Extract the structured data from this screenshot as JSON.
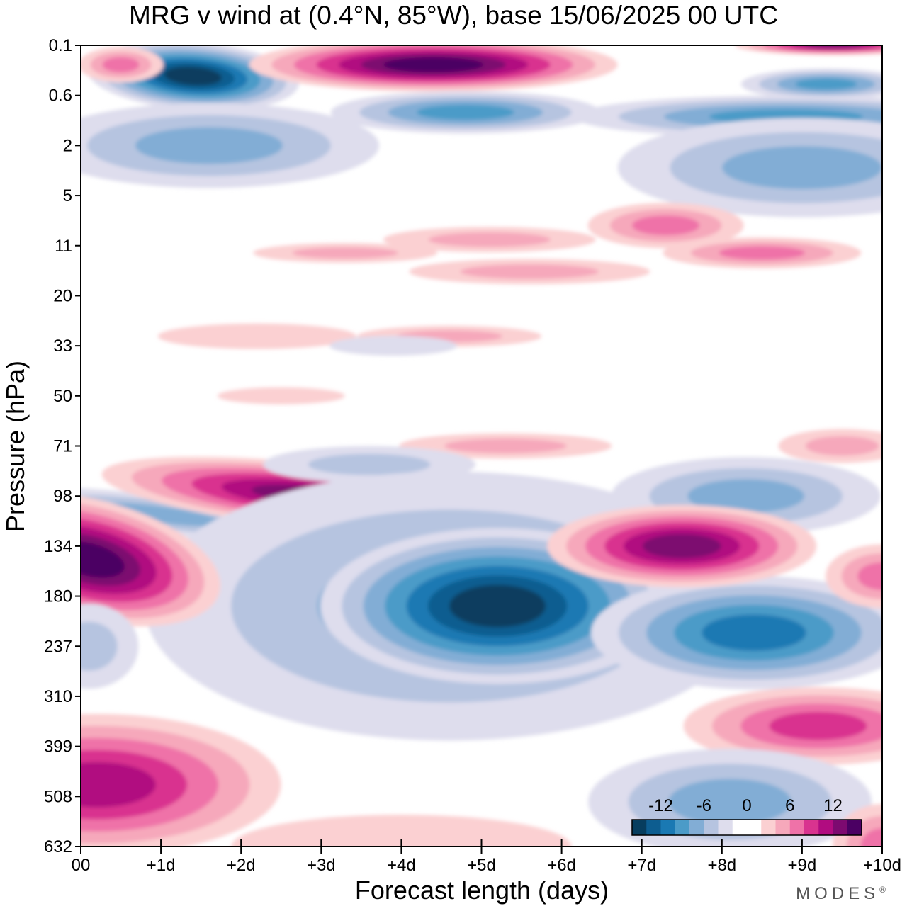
{
  "chart_data": {
    "type": "heatmap",
    "title": "MRG v wind at (0.4°N, 85°W),  base 15/06/2025  00 UTC",
    "xlabel": "Forecast length (days)",
    "ylabel": "Pressure (hPa)",
    "x_ticks": [
      "00",
      "+1d",
      "+2d",
      "+3d",
      "+4d",
      "+5d",
      "+6d",
      "+7d",
      "+8d",
      "+9d",
      "+10d"
    ],
    "xlim": [
      0,
      10
    ],
    "y_ticks": [
      "0.1",
      "0.6",
      "2",
      "5",
      "11",
      "20",
      "33",
      "50",
      "71",
      "98",
      "134",
      "180",
      "237",
      "310",
      "399",
      "508",
      "632"
    ],
    "y_scale": "log-pressure (inverted)",
    "colorbar": {
      "tick_labels": [
        "-12",
        "-6",
        "0",
        "6",
        "12"
      ],
      "colors": [
        "#073d5e",
        "#0d5d90",
        "#1a79b3",
        "#4b9bc8",
        "#82add5",
        "#b6c4e0",
        "#dedded",
        "#ffffff",
        "#ffffff",
        "#fbd0d2",
        "#f6a8bb",
        "#ef72a8",
        "#d9338f",
        "#b10c80",
        "#7d0a70",
        "#4b0063"
      ]
    },
    "fields": [
      {
        "name": "upper-left blue",
        "x": 1.5,
        "y": "0.2",
        "value": -14
      },
      {
        "name": "upper purple",
        "x": 4.8,
        "y": "0.2",
        "value": 14
      },
      {
        "name": "positive band",
        "x": 3.0,
        "y": "100",
        "value": 9
      },
      {
        "name": "negative core",
        "x": 5.2,
        "y": "190",
        "value": -15
      },
      {
        "name": "positive left",
        "x": 0.1,
        "y": "140",
        "value": 12
      },
      {
        "name": "negative right",
        "x": 8.5,
        "y": "230",
        "value": -9
      },
      {
        "name": "positive right",
        "x": 7.6,
        "y": "125",
        "value": 10
      },
      {
        "name": "positive lower-left",
        "x": 0.3,
        "y": "480",
        "value": 9
      },
      {
        "name": "positive lower-right",
        "x": 9.2,
        "y": "360",
        "value": 5
      }
    ]
  },
  "brand": "MODES",
  "brand_mark": "®"
}
